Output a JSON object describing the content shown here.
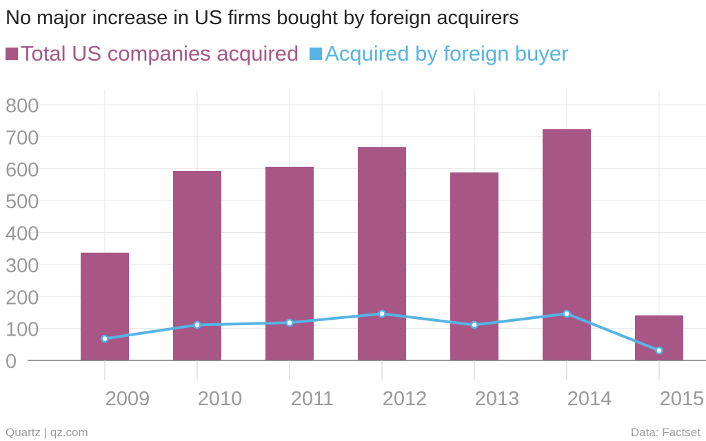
{
  "title": "No major increase in US firms bought by foreign acquirers",
  "legend": {
    "series1": "Total US companies acquired",
    "series2": "Acquired by foreign buyer"
  },
  "colors": {
    "bar": "#a85686",
    "line": "#56b4e4",
    "grid": "#e6e6e6",
    "axis": "#999999"
  },
  "chart_data": {
    "type": "bar",
    "title": "No major increase in US firms bought by foreign acquirers",
    "categories": [
      "2009",
      "2010",
      "2011",
      "2012",
      "2013",
      "2014",
      "2015"
    ],
    "series": [
      {
        "name": "Total US companies acquired",
        "type": "bar",
        "values": [
          337,
          593,
          606,
          668,
          588,
          724,
          141
        ]
      },
      {
        "name": "Acquired by foreign buyer",
        "type": "line",
        "values": [
          68,
          111,
          118,
          146,
          111,
          146,
          31
        ]
      }
    ],
    "ylim": [
      0,
      800
    ],
    "yticks": [
      "0",
      "100",
      "200",
      "300",
      "400",
      "500",
      "600",
      "700",
      "800"
    ],
    "xlabel": "",
    "ylabel": "",
    "grid": true,
    "legend": "top-left"
  },
  "footer": {
    "source_left": "Quartz | qz.com",
    "source_right": "Data: Factset"
  }
}
